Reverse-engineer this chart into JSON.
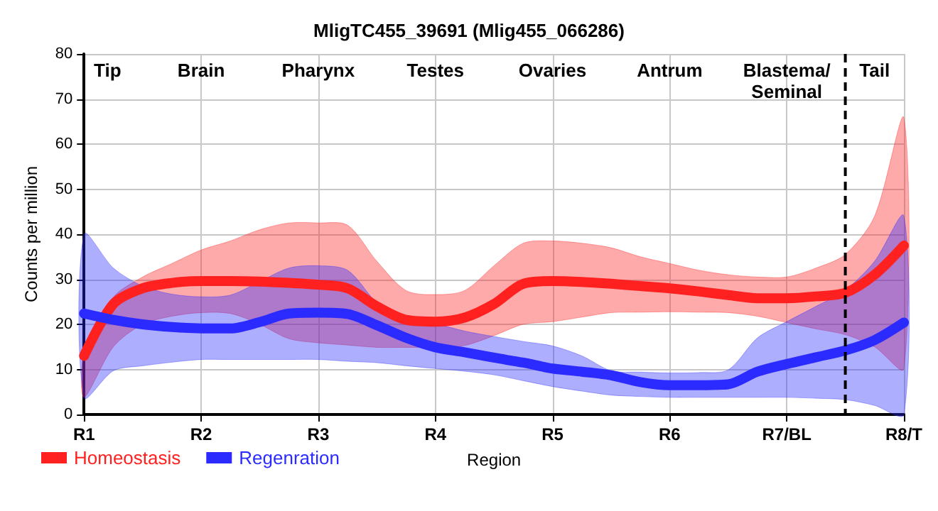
{
  "chart_data": {
    "type": "line",
    "title": "MligTC455_39691 (Mlig455_066286)",
    "xlabel": "Region",
    "ylabel": "Counts per million",
    "categories": [
      "R1",
      null,
      null,
      null,
      "R2",
      null,
      null,
      null,
      "R3",
      null,
      null,
      null,
      "R4",
      null,
      null,
      null,
      "R5",
      null,
      null,
      null,
      "R6",
      null,
      null,
      null,
      "R7/BL",
      null,
      null,
      null,
      "R8/T"
    ],
    "series": [
      {
        "name": "Homeostasis",
        "color": "#ff2020",
        "values": [
          13,
          24.5,
          28,
          29.2,
          29.6,
          29.6,
          29.5,
          29.2,
          28.8,
          28,
          24,
          21,
          20.6,
          21.5,
          24.5,
          29,
          29.6,
          29.4,
          29,
          28.5,
          28,
          27.3,
          26.5,
          25.8,
          25.8,
          26.2,
          27,
          31,
          37.5
        ],
        "upper": [
          13.7,
          26,
          30.5,
          33.5,
          36.5,
          38.5,
          41,
          42.5,
          42.5,
          42,
          34,
          27.5,
          26.6,
          27.5,
          33,
          38,
          38.5,
          38,
          37,
          35,
          33.5,
          32,
          31,
          30.5,
          30.5,
          32.5,
          35.5,
          44,
          65.8
        ],
        "lower": [
          3.8,
          15,
          20,
          21.8,
          22.6,
          22.4,
          20,
          16.8,
          15.9,
          15.4,
          14.9,
          14.9,
          14.9,
          15.3,
          17.5,
          20,
          20.6,
          21.6,
          22.6,
          22.7,
          22.8,
          22.7,
          22.6,
          21.8,
          20.4,
          19,
          17.7,
          15,
          10.2
        ]
      },
      {
        "name": "Regenration",
        "color": "#2b2bff",
        "values": [
          22.4,
          21,
          20,
          19.4,
          19.1,
          19.1,
          20.5,
          22.4,
          22.6,
          22.3,
          19.8,
          17,
          14.9,
          13.8,
          12.6,
          11.5,
          10.2,
          9.5,
          8.7,
          7.2,
          6.5,
          6.5,
          6.7,
          9.5,
          11.2,
          12.7,
          14.2,
          16.5,
          20.4
        ],
        "upper": [
          40,
          32.5,
          28.5,
          26.7,
          26.1,
          26.5,
          29.5,
          32.5,
          33,
          32,
          24.8,
          20.8,
          20.1,
          18.5,
          17.3,
          16.2,
          15.2,
          13,
          9.7,
          9.4,
          9.2,
          9.3,
          9.9,
          17,
          20.6,
          24,
          27.6,
          34,
          44
        ],
        "lower": [
          3.8,
          9.7,
          10.8,
          11.6,
          12.2,
          12.2,
          12.2,
          12.2,
          12.2,
          11.8,
          11.5,
          10.8,
          10.2,
          9.6,
          8.8,
          7.5,
          6.2,
          5.2,
          4.3,
          4,
          3.8,
          3.8,
          3.8,
          3.8,
          3.8,
          3.6,
          3.3,
          2,
          0
        ]
      }
    ],
    "ylim": [
      0,
      80
    ],
    "yticks": [
      0,
      10,
      20,
      30,
      40,
      50,
      60,
      70,
      80
    ],
    "ref_lines": [
      {
        "axis": "x",
        "value": null,
        "color": "#000000",
        "line_style": "dashed"
      }
    ],
    "annotations": [
      "Tip",
      "Brain",
      "Pharynx",
      "Testes",
      "Ovaries",
      "Antrum",
      "Blastema/\nSeminal",
      "Tail"
    ],
    "grid": true,
    "legend": "bottom left",
    "line_style": "solid"
  }
}
